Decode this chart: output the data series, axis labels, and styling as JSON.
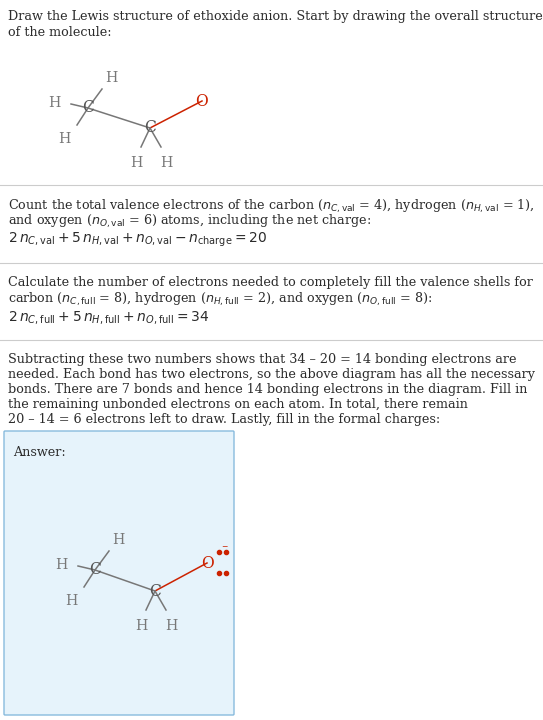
{
  "bg_color": "#ffffff",
  "text_color": "#2b2b2b",
  "C_color": "#555555",
  "H_color": "#777777",
  "O_color": "#cc2200",
  "bond_color": "#777777",
  "answer_bg": "#e6f3fb",
  "answer_border": "#88bbdd",
  "title_line1": "Draw the Lewis structure of ethoxide anion. Start by drawing the overall structure",
  "title_line2": "of the molecule:",
  "s1_line1": "Count the total valence electrons of the carbon (",
  "s1_line2": "and oxygen (",
  "s1_line3": "2 n_C,val + 5 n_H,val + n_O,val − n_charge = 20",
  "s2_line1": "Calculate the number of electrons needed to completely fill the valence shells for",
  "s2_line2": "carbon (",
  "s2_line3": "2 n_C,full + 5 n_H,full + n_O,full = 34",
  "s3_lines": [
    "Subtracting these two numbers shows that 34 – 20 = 14 bonding electrons are",
    "needed. Each bond has two electrons, so the above diagram has all the necessary",
    "bonds. There are 7 bonds and hence 14 bonding electrons in the diagram. Fill in",
    "the remaining unbonded electrons on each atom. In total, there remain",
    "20 – 14 = 6 electrons left to draw. Lastly, fill in the formal charges:"
  ],
  "answer_label": "Answer:",
  "fs_body": 9.2,
  "fs_eq": 10.0,
  "line_color": "#cccccc"
}
